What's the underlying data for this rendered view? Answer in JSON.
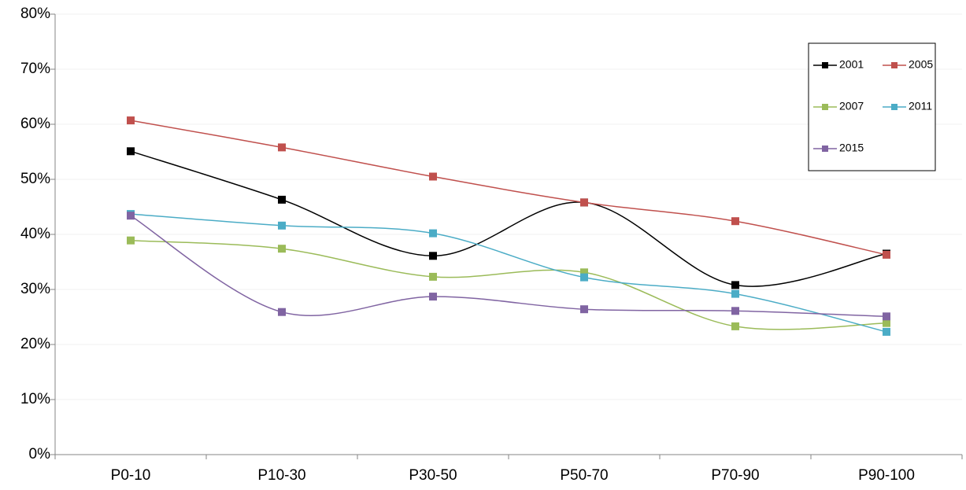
{
  "chart_data": {
    "type": "line",
    "smooth": true,
    "grid": true,
    "legend": "top-right",
    "categories": [
      "P0-10",
      "P10-30",
      "P30-50",
      "P50-70",
      "P70-90",
      "P90-100"
    ],
    "series": [
      {
        "name": "2001",
        "color": "#000000",
        "values": [
          55.1,
          46.3,
          36.1,
          45.8,
          30.8,
          36.5
        ]
      },
      {
        "name": "2005",
        "color": "#c0504d",
        "values": [
          60.7,
          55.8,
          50.5,
          45.8,
          42.4,
          36.3
        ]
      },
      {
        "name": "2007",
        "color": "#9bbb59",
        "values": [
          38.9,
          37.4,
          32.3,
          33.1,
          23.3,
          23.9
        ]
      },
      {
        "name": "2011",
        "color": "#4bacc6",
        "values": [
          43.7,
          41.6,
          40.2,
          32.2,
          29.2,
          22.3
        ]
      },
      {
        "name": "2015",
        "color": "#8064a2",
        "values": [
          43.4,
          25.9,
          28.7,
          26.4,
          26.1,
          25.1
        ]
      }
    ],
    "ylim": [
      0,
      80
    ],
    "yticks": [
      {
        "value": 0,
        "label": "0%"
      },
      {
        "value": 10,
        "label": "10%"
      },
      {
        "value": 20,
        "label": "20%"
      },
      {
        "value": 30,
        "label": "30%"
      },
      {
        "value": 40,
        "label": "40%"
      },
      {
        "value": 50,
        "label": "50%"
      },
      {
        "value": 60,
        "label": "60%"
      },
      {
        "value": 70,
        "label": "70%"
      },
      {
        "value": 80,
        "label": "80%"
      }
    ]
  }
}
